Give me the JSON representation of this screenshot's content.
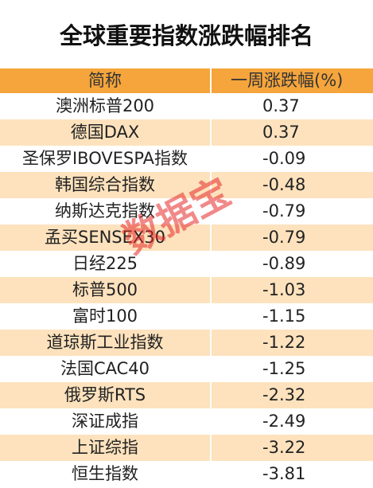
{
  "title": "全球重要指数涨跌幅排名",
  "watermark": "数据宝",
  "table": {
    "header": [
      "简称",
      "一周涨跌幅(%)"
    ],
    "rows": [
      [
        "澳洲标普200",
        "0.37"
      ],
      [
        "德国DAX",
        "0.37"
      ],
      [
        "圣保罗IBOVESPA指数",
        "-0.09"
      ],
      [
        "韩国综合指数",
        "-0.48"
      ],
      [
        "纳斯达克指数",
        "-0.79"
      ],
      [
        "孟买SENSEX30",
        "-0.79"
      ],
      [
        "日经225",
        "-0.89"
      ],
      [
        "标普500",
        "-1.03"
      ],
      [
        "富时100",
        "-1.15"
      ],
      [
        "道琼斯工业指数",
        "-1.22"
      ],
      [
        "法国CAC40",
        "-1.25"
      ],
      [
        "俄罗斯RTS",
        "-2.32"
      ],
      [
        "深证成指",
        "-2.49"
      ],
      [
        "上证综指",
        "-3.22"
      ],
      [
        "恒生指数",
        "-3.81"
      ]
    ]
  }
}
